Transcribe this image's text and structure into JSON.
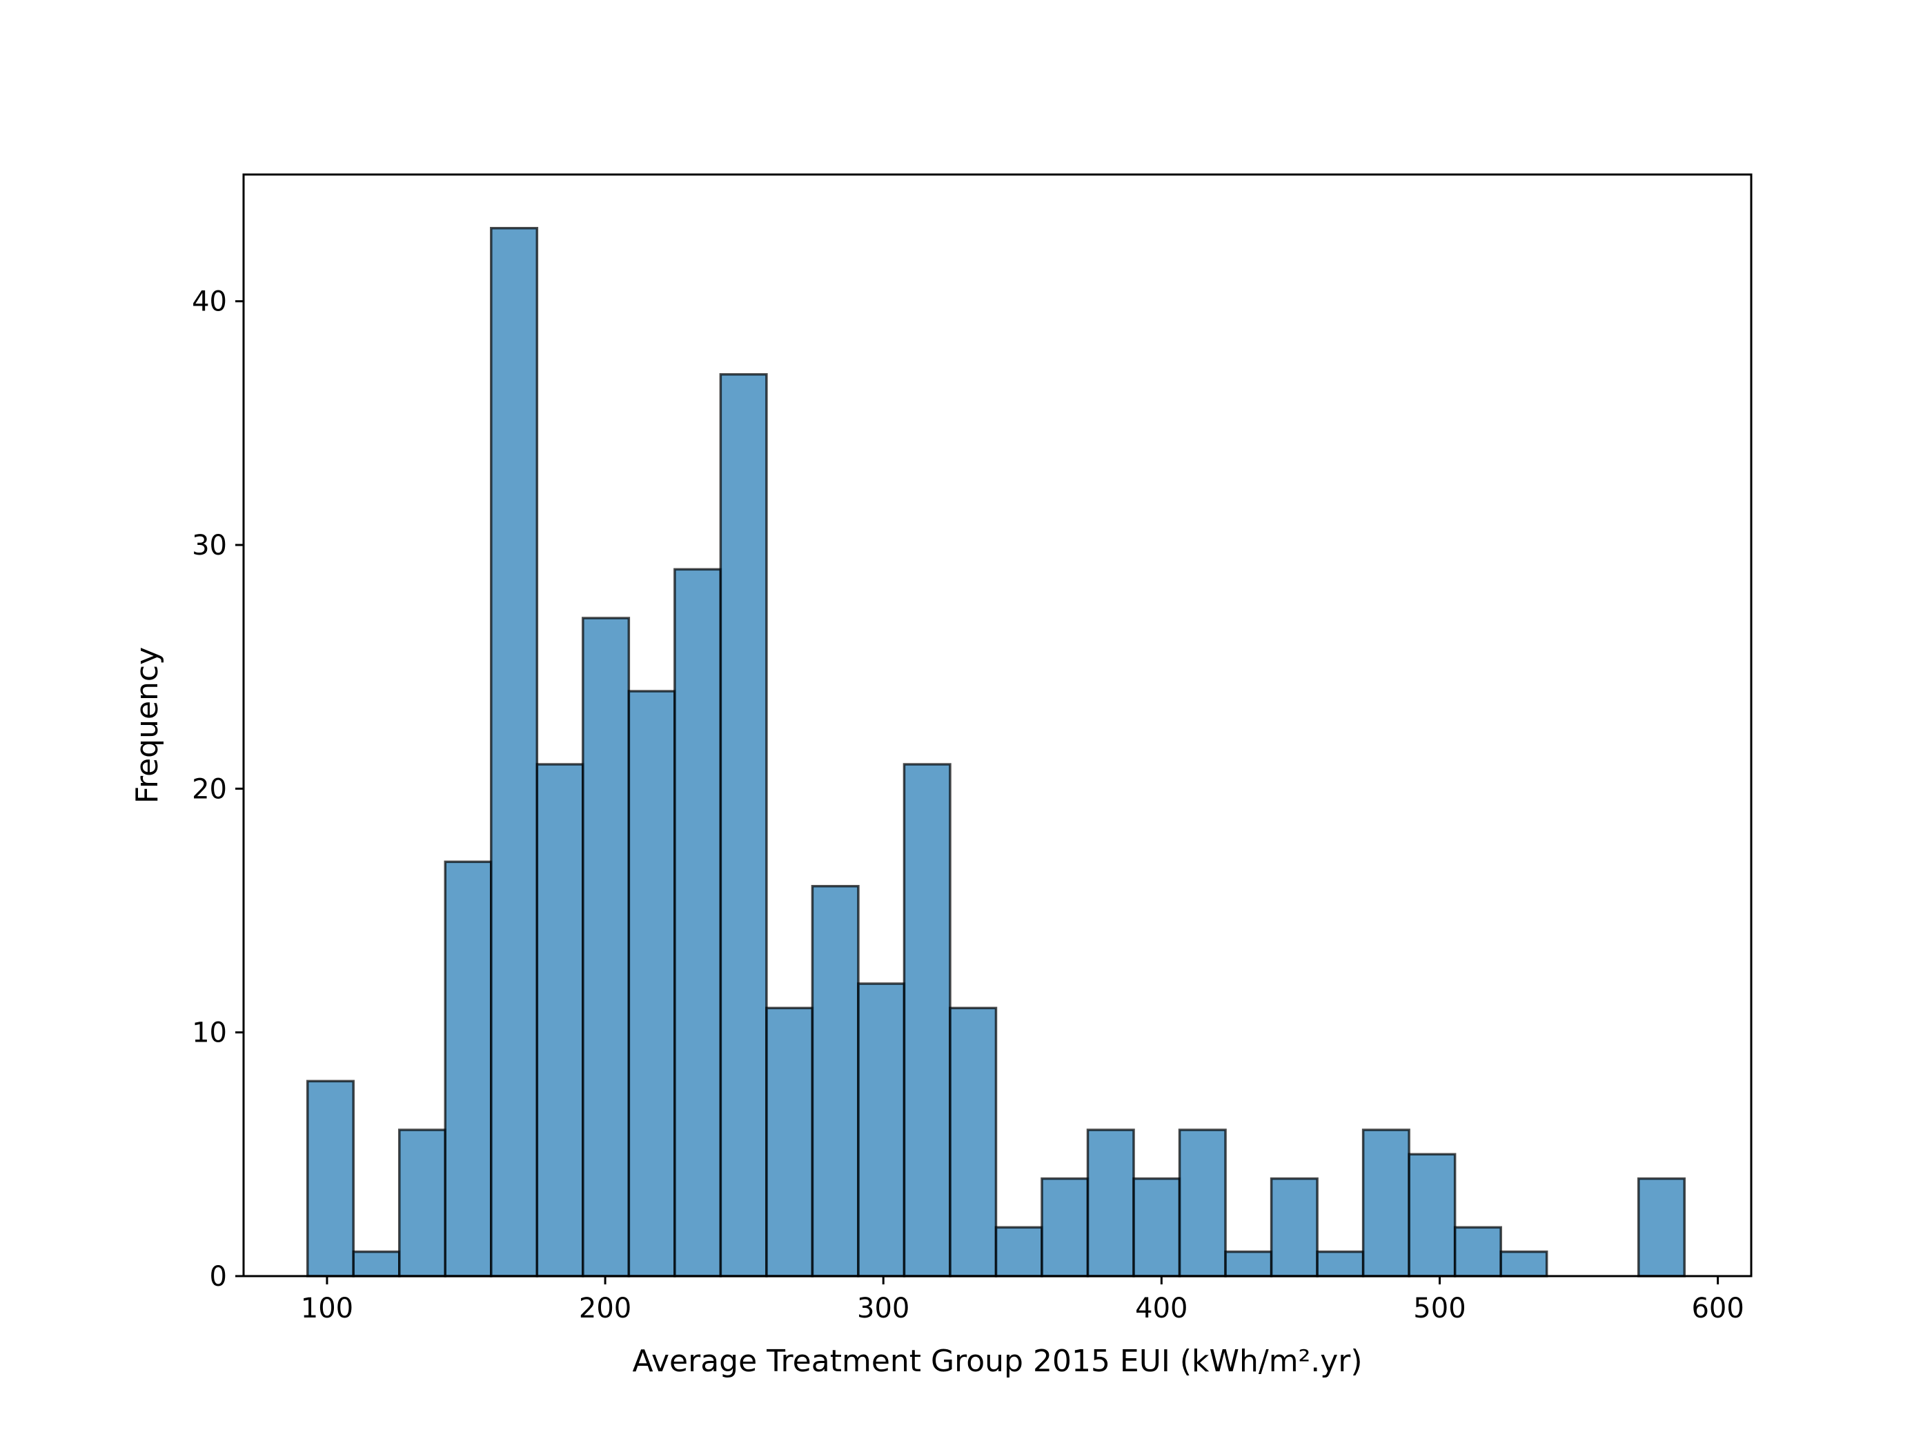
{
  "chart_data": {
    "type": "bar",
    "title": "",
    "xlabel": "Average Treatment Group 2015 EUI (kWh/m².yr)",
    "ylabel": "Frequency",
    "xlim": [
      70,
      612
    ],
    "ylim": [
      0,
      45.2
    ],
    "xticks": [
      100,
      200,
      300,
      400,
      500,
      600
    ],
    "yticks": [
      0,
      10,
      20,
      30,
      40
    ],
    "grid": false,
    "legend": "none",
    "bar_color": "#1f77b4",
    "bar_alpha": 0.7,
    "edge_color": "#000000",
    "bins": [
      {
        "x0": 93.0,
        "x1": 109.5,
        "count": 8
      },
      {
        "x0": 109.5,
        "x1": 126.0,
        "count": 1
      },
      {
        "x0": 126.0,
        "x1": 142.5,
        "count": 6
      },
      {
        "x0": 142.5,
        "x1": 159.0,
        "count": 17
      },
      {
        "x0": 159.0,
        "x1": 175.5,
        "count": 43
      },
      {
        "x0": 175.5,
        "x1": 192.0,
        "count": 21
      },
      {
        "x0": 192.0,
        "x1": 208.5,
        "count": 27
      },
      {
        "x0": 208.5,
        "x1": 225.0,
        "count": 24
      },
      {
        "x0": 225.0,
        "x1": 241.5,
        "count": 29
      },
      {
        "x0": 241.5,
        "x1": 258.0,
        "count": 37
      },
      {
        "x0": 258.0,
        "x1": 274.5,
        "count": 11
      },
      {
        "x0": 274.5,
        "x1": 291.0,
        "count": 16
      },
      {
        "x0": 291.0,
        "x1": 307.5,
        "count": 12
      },
      {
        "x0": 307.5,
        "x1": 324.0,
        "count": 21
      },
      {
        "x0": 324.0,
        "x1": 340.5,
        "count": 11
      },
      {
        "x0": 340.5,
        "x1": 357.0,
        "count": 2
      },
      {
        "x0": 357.0,
        "x1": 373.5,
        "count": 4
      },
      {
        "x0": 373.5,
        "x1": 390.0,
        "count": 6
      },
      {
        "x0": 390.0,
        "x1": 406.5,
        "count": 4
      },
      {
        "x0": 406.5,
        "x1": 423.0,
        "count": 6
      },
      {
        "x0": 423.0,
        "x1": 439.5,
        "count": 1
      },
      {
        "x0": 439.5,
        "x1": 456.0,
        "count": 4
      },
      {
        "x0": 456.0,
        "x1": 472.5,
        "count": 1
      },
      {
        "x0": 472.5,
        "x1": 489.0,
        "count": 6
      },
      {
        "x0": 489.0,
        "x1": 505.5,
        "count": 5
      },
      {
        "x0": 505.5,
        "x1": 522.0,
        "count": 2
      },
      {
        "x0": 522.0,
        "x1": 538.5,
        "count": 1
      },
      {
        "x0": 538.5,
        "x1": 555.0,
        "count": 0
      },
      {
        "x0": 555.0,
        "x1": 571.5,
        "count": 0
      },
      {
        "x0": 571.5,
        "x1": 588.0,
        "count": 4
      }
    ]
  }
}
